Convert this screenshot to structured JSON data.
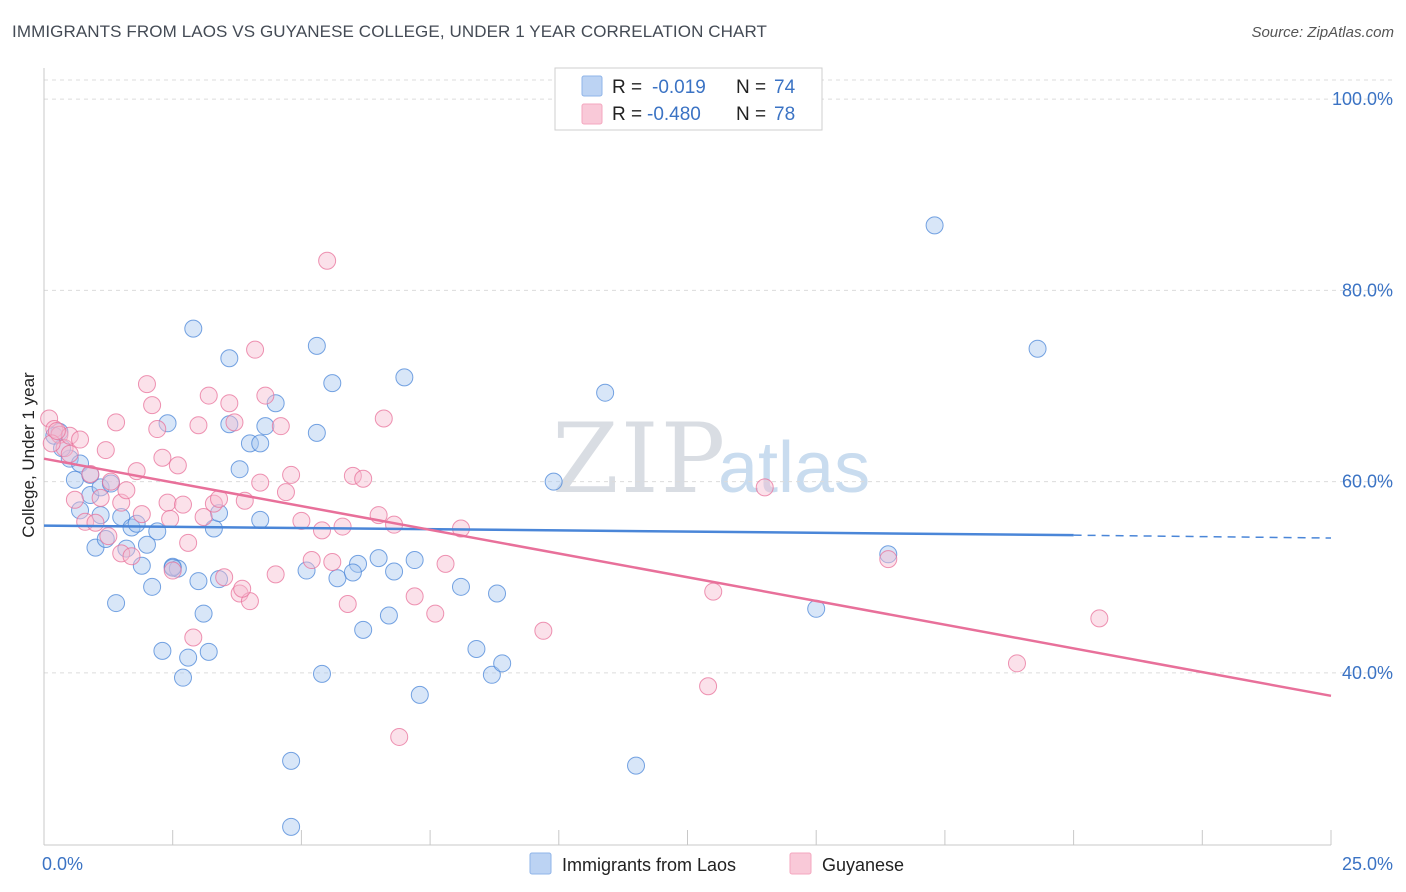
{
  "title": "IMMIGRANTS FROM LAOS VS GUYANESE COLLEGE, UNDER 1 YEAR CORRELATION CHART",
  "source": "Source: ZipAtlas.com",
  "watermark": {
    "zip": "ZIP",
    "atlas": "atlas"
  },
  "legend": {
    "rows": [
      {
        "r_label": "R =",
        "r_value": "-0.019",
        "n_label": "N =",
        "n_value": "74",
        "color": "#8fb4e8"
      },
      {
        "r_label": "R =",
        "r_value": "-0.480",
        "n_label": "N =",
        "n_value": "78",
        "color": "#f4a7bf"
      }
    ]
  },
  "bottom_legend": [
    {
      "label": "Immigrants from Laos",
      "color": "#8fb4e8"
    },
    {
      "label": "Guyanese",
      "color": "#f4a7bf"
    }
  ],
  "chart_data": {
    "type": "scatter",
    "title": "IMMIGRANTS FROM LAOS VS GUYANESE COLLEGE, UNDER 1 YEAR CORRELATION CHART",
    "xlabel": "",
    "ylabel": "College, Under 1 year",
    "xlim": [
      0,
      25
    ],
    "ylim": [
      22,
      102
    ],
    "x_tick_labels": [
      "0.0%",
      "25.0%"
    ],
    "y_ticks": [
      40,
      60,
      80,
      100
    ],
    "y_tick_labels": [
      "40.0%",
      "60.0%",
      "80.0%",
      "100.0%"
    ],
    "grid": true,
    "series": [
      {
        "name": "Immigrants from Laos",
        "color": "#4a86d8",
        "fill": "#a9c7ef",
        "trend": {
          "x0": 0,
          "y0": 55.4,
          "x1": 20,
          "y1": 54.4,
          "dash_to_x": 25,
          "dash_to_y": 54.1
        },
        "points": [
          [
            0.3,
            65.2
          ],
          [
            0.5,
            62.4
          ],
          [
            0.6,
            60.2
          ],
          [
            0.7,
            61.9
          ],
          [
            0.7,
            57.0
          ],
          [
            0.9,
            60.7
          ],
          [
            0.9,
            58.6
          ],
          [
            1.0,
            53.1
          ],
          [
            1.1,
            56.5
          ],
          [
            1.1,
            59.4
          ],
          [
            1.2,
            54.0
          ],
          [
            1.4,
            47.3
          ],
          [
            1.5,
            56.3
          ],
          [
            1.6,
            53.0
          ],
          [
            1.7,
            55.2
          ],
          [
            1.8,
            55.6
          ],
          [
            1.9,
            51.2
          ],
          [
            2.0,
            53.4
          ],
          [
            2.1,
            49.0
          ],
          [
            2.2,
            54.8
          ],
          [
            2.3,
            42.3
          ],
          [
            2.4,
            66.1
          ],
          [
            2.5,
            51.1
          ],
          [
            2.6,
            50.9
          ],
          [
            2.7,
            39.5
          ],
          [
            2.8,
            41.6
          ],
          [
            2.9,
            76.0
          ],
          [
            3.0,
            49.6
          ],
          [
            3.1,
            46.2
          ],
          [
            3.2,
            42.2
          ],
          [
            3.3,
            55.1
          ],
          [
            3.4,
            56.7
          ],
          [
            3.6,
            66.0
          ],
          [
            3.6,
            72.9
          ],
          [
            3.8,
            61.3
          ],
          [
            4.0,
            64.0
          ],
          [
            4.2,
            64.0
          ],
          [
            4.3,
            65.8
          ],
          [
            4.5,
            68.2
          ],
          [
            4.8,
            30.8
          ],
          [
            4.8,
            23.9
          ],
          [
            5.1,
            50.7
          ],
          [
            5.3,
            74.2
          ],
          [
            5.3,
            65.1
          ],
          [
            5.4,
            39.9
          ],
          [
            5.6,
            70.3
          ],
          [
            5.7,
            49.9
          ],
          [
            6.1,
            51.4
          ],
          [
            6.2,
            44.5
          ],
          [
            6.5,
            52.0
          ],
          [
            6.7,
            46.0
          ],
          [
            6.8,
            50.6
          ],
          [
            7.0,
            70.9
          ],
          [
            7.2,
            51.8
          ],
          [
            7.3,
            37.7
          ],
          [
            8.1,
            49.0
          ],
          [
            8.4,
            42.5
          ],
          [
            8.7,
            39.8
          ],
          [
            8.8,
            48.3
          ],
          [
            8.9,
            41.0
          ],
          [
            9.9,
            60.0
          ],
          [
            10.9,
            69.3
          ],
          [
            11.5,
            30.3
          ],
          [
            15.0,
            46.7
          ],
          [
            16.4,
            52.4
          ],
          [
            17.3,
            86.8
          ],
          [
            19.3,
            73.9
          ],
          [
            0.2,
            64.8
          ],
          [
            0.35,
            63.5
          ],
          [
            1.3,
            59.8
          ],
          [
            2.5,
            51.0
          ],
          [
            4.2,
            56.0
          ],
          [
            6.0,
            50.5
          ],
          [
            3.4,
            49.8
          ]
        ]
      },
      {
        "name": "Guyanese",
        "color": "#e8709a",
        "fill": "#f7bdd0",
        "trend": {
          "x0": 0,
          "y0": 62.4,
          "x1": 25,
          "y1": 37.6
        },
        "points": [
          [
            0.1,
            66.6
          ],
          [
            0.2,
            65.5
          ],
          [
            0.3,
            64.9
          ],
          [
            0.4,
            63.5
          ],
          [
            0.5,
            62.9
          ],
          [
            0.5,
            64.8
          ],
          [
            0.6,
            58.1
          ],
          [
            0.7,
            64.4
          ],
          [
            0.8,
            55.8
          ],
          [
            0.9,
            60.8
          ],
          [
            1.0,
            55.7
          ],
          [
            1.1,
            58.3
          ],
          [
            1.2,
            63.3
          ],
          [
            1.3,
            60.0
          ],
          [
            1.4,
            66.2
          ],
          [
            1.5,
            52.5
          ],
          [
            1.5,
            57.8
          ],
          [
            1.6,
            59.1
          ],
          [
            1.7,
            52.2
          ],
          [
            1.8,
            61.1
          ],
          [
            1.9,
            56.6
          ],
          [
            2.0,
            70.2
          ],
          [
            2.1,
            68.0
          ],
          [
            2.2,
            65.5
          ],
          [
            2.3,
            62.5
          ],
          [
            2.4,
            57.8
          ],
          [
            2.5,
            50.7
          ],
          [
            2.6,
            61.7
          ],
          [
            2.7,
            57.6
          ],
          [
            2.8,
            53.6
          ],
          [
            2.9,
            43.7
          ],
          [
            3.0,
            65.9
          ],
          [
            3.1,
            56.3
          ],
          [
            3.2,
            69.0
          ],
          [
            3.3,
            57.7
          ],
          [
            3.4,
            58.2
          ],
          [
            3.5,
            50.0
          ],
          [
            3.6,
            68.2
          ],
          [
            3.7,
            66.2
          ],
          [
            3.8,
            48.3
          ],
          [
            3.9,
            58.0
          ],
          [
            4.0,
            47.5
          ],
          [
            4.1,
            73.8
          ],
          [
            4.2,
            59.9
          ],
          [
            4.3,
            69.0
          ],
          [
            4.5,
            50.3
          ],
          [
            4.6,
            65.8
          ],
          [
            4.7,
            58.9
          ],
          [
            4.8,
            60.7
          ],
          [
            5.0,
            55.9
          ],
          [
            5.2,
            51.8
          ],
          [
            5.4,
            54.9
          ],
          [
            5.5,
            83.1
          ],
          [
            5.6,
            51.6
          ],
          [
            5.8,
            55.3
          ],
          [
            6.0,
            60.6
          ],
          [
            6.2,
            60.3
          ],
          [
            6.5,
            56.5
          ],
          [
            6.6,
            66.6
          ],
          [
            6.8,
            55.5
          ],
          [
            6.9,
            33.3
          ],
          [
            7.2,
            48.0
          ],
          [
            7.6,
            46.2
          ],
          [
            7.8,
            51.4
          ],
          [
            8.1,
            55.1
          ],
          [
            9.7,
            44.4
          ],
          [
            12.9,
            38.6
          ],
          [
            13.0,
            48.5
          ],
          [
            14.0,
            59.4
          ],
          [
            16.4,
            51.9
          ],
          [
            18.9,
            41.0
          ],
          [
            20.5,
            45.7
          ],
          [
            0.15,
            64.0
          ],
          [
            1.25,
            54.3
          ],
          [
            2.45,
            56.1
          ],
          [
            3.85,
            48.8
          ],
          [
            5.9,
            47.2
          ],
          [
            0.25,
            65.3
          ]
        ]
      }
    ]
  }
}
